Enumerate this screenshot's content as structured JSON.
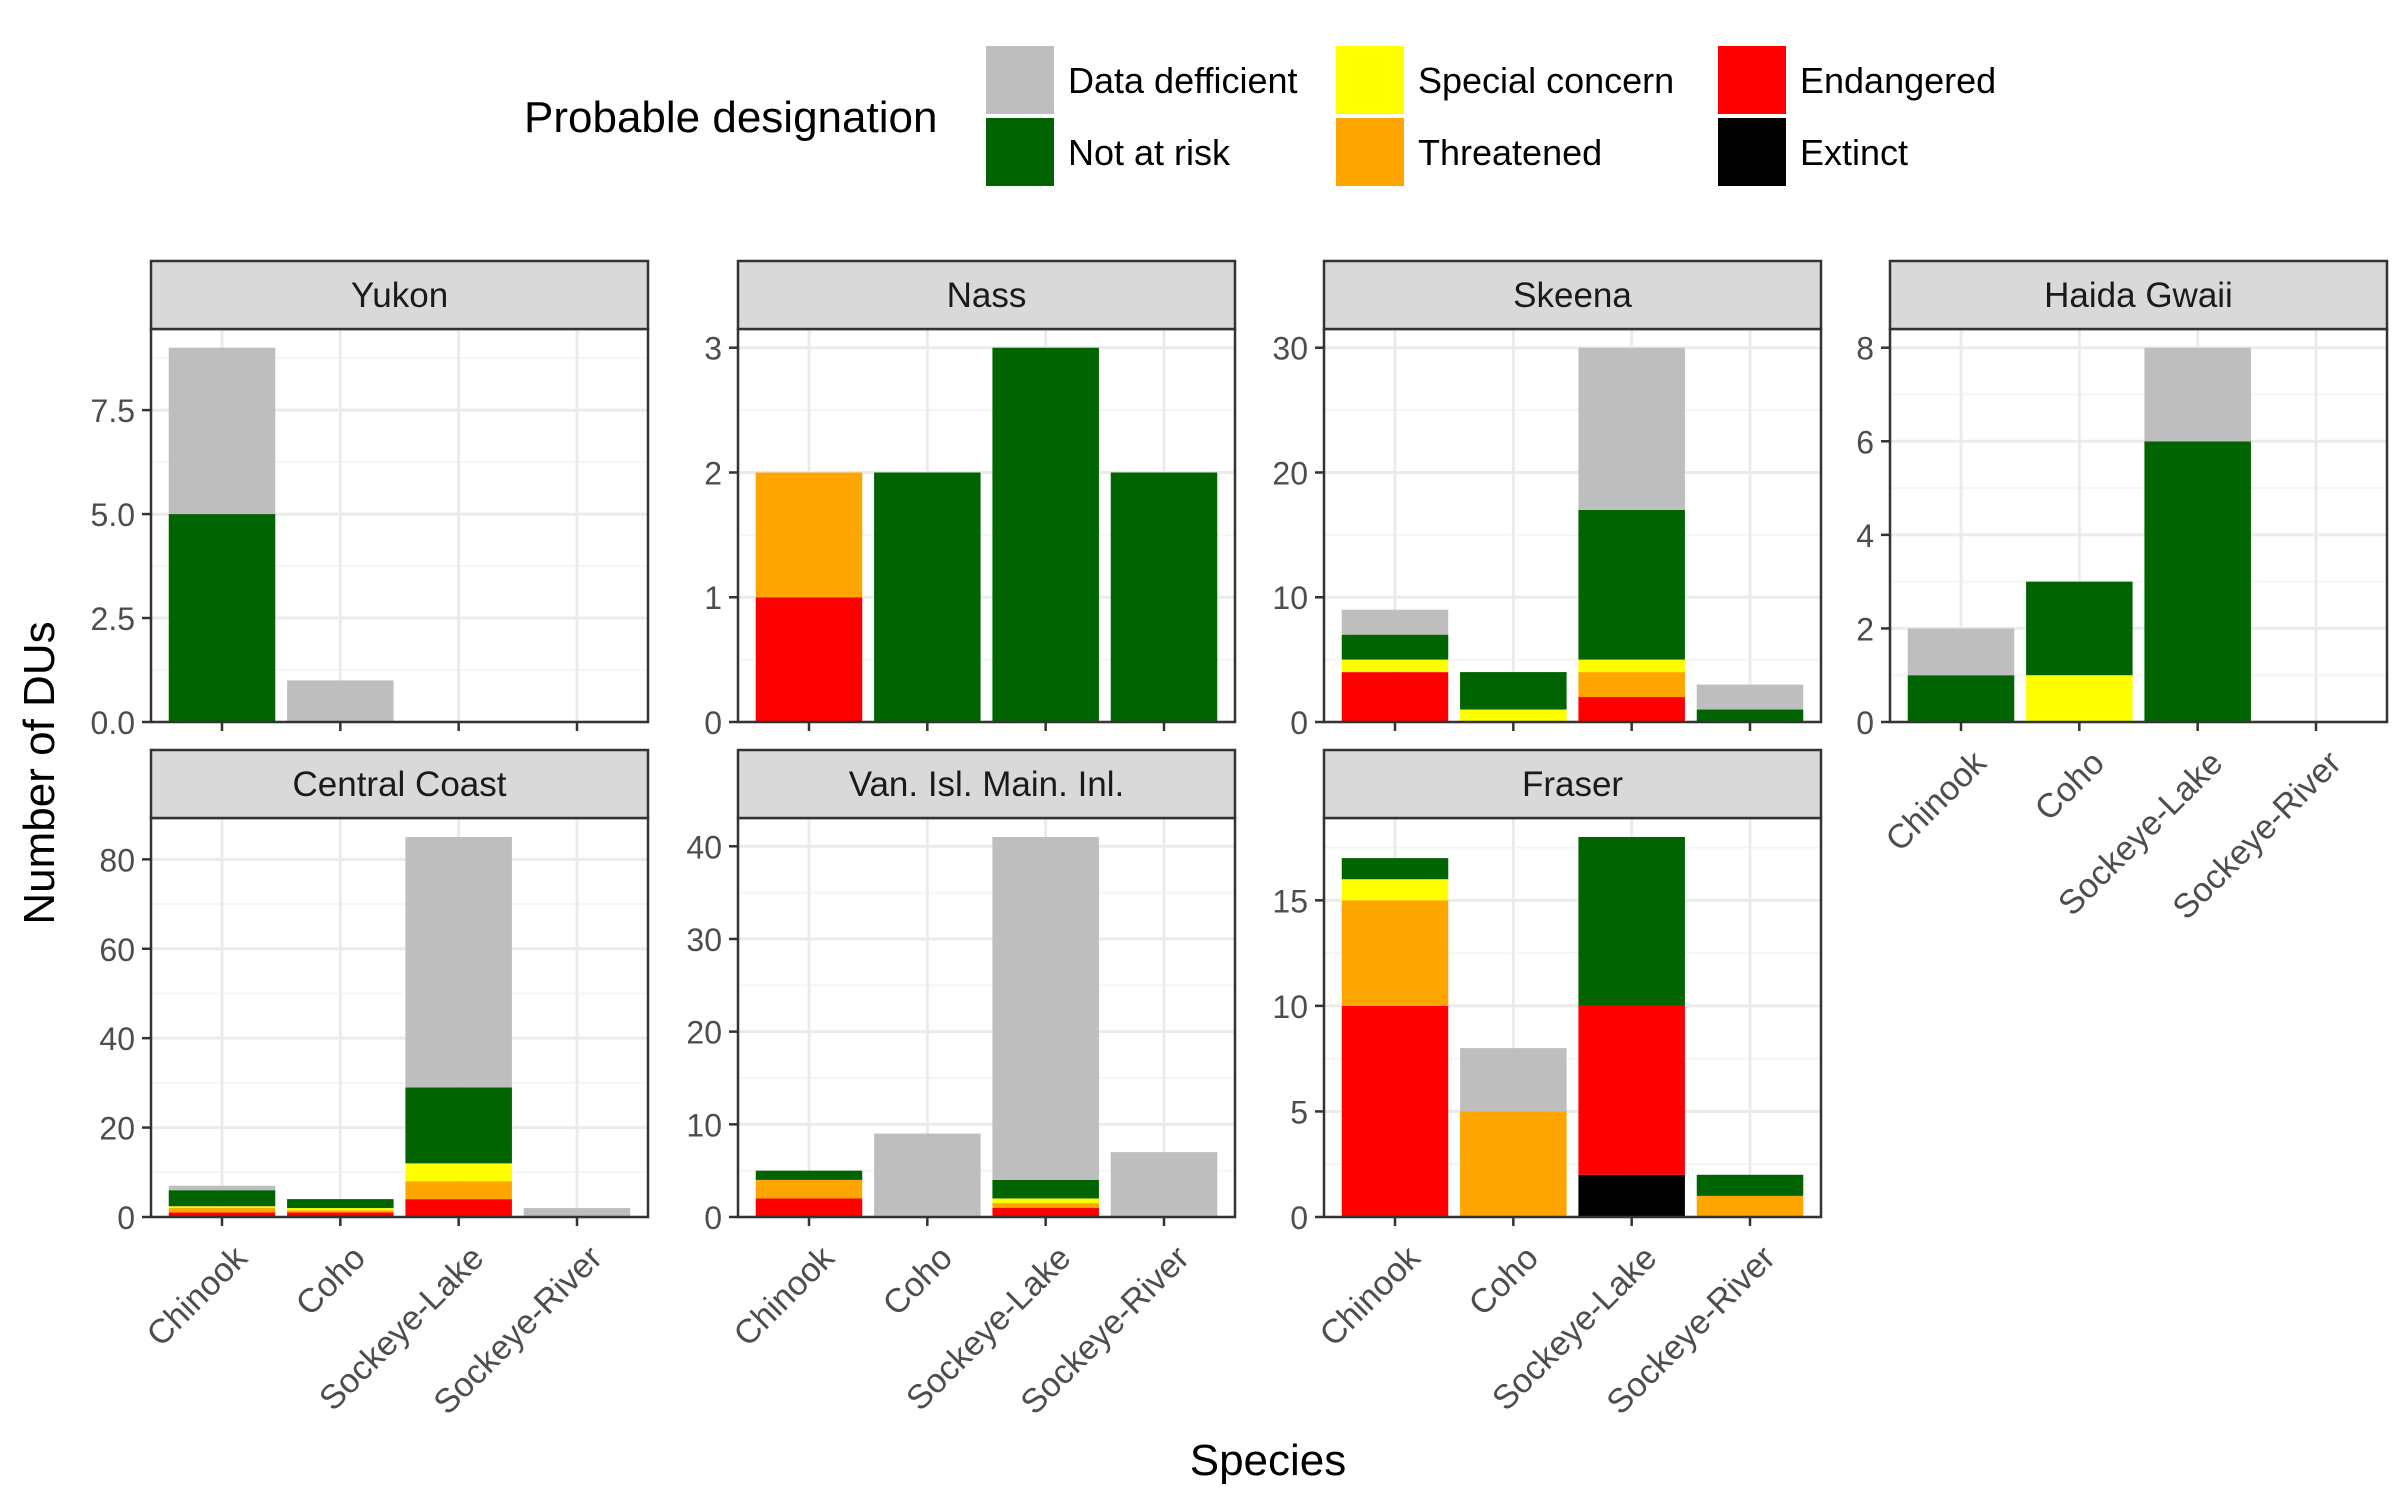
{
  "legend": {
    "title": "Probable designation",
    "items": [
      {
        "key": "dd",
        "label": "Data defficient",
        "color": "#BEBEBE"
      },
      {
        "key": "nar",
        "label": "Not at risk",
        "color": "#006400"
      },
      {
        "key": "sc",
        "label": "Special concern",
        "color": "#FFFF00"
      },
      {
        "key": "thr",
        "label": "Threatened",
        "color": "#FFA500"
      },
      {
        "key": "end",
        "label": "Endangered",
        "color": "#FF0000"
      },
      {
        "key": "ext",
        "label": "Extinct",
        "color": "#000000"
      }
    ]
  },
  "axes": {
    "xlabel": "Species",
    "ylabel": "Number of DUs"
  },
  "chart_data": {
    "type": "bar",
    "stacked": true,
    "grid": true,
    "legend_position": "top",
    "categories": [
      "Chinook",
      "Coho",
      "Sockeye-Lake",
      "Sockeye-River"
    ],
    "stack_order": [
      "ext",
      "end",
      "thr",
      "sc",
      "nar",
      "dd"
    ],
    "panels": [
      {
        "title": "Yukon",
        "ylim": [
          0,
          9.45
        ],
        "yticks": [
          0,
          2.5,
          5,
          7.5
        ],
        "ytick_labels": [
          "0.0",
          "2.5",
          "5.0",
          "7.5"
        ],
        "values": {
          "Chinook": {
            "nar": 5,
            "dd": 4
          },
          "Coho": {
            "dd": 1
          },
          "Sockeye-Lake": {},
          "Sockeye-River": {}
        }
      },
      {
        "title": "Nass",
        "ylim": [
          0,
          3.15
        ],
        "yticks": [
          0,
          1,
          2,
          3
        ],
        "ytick_labels": [
          "0",
          "1",
          "2",
          "3"
        ],
        "values": {
          "Chinook": {
            "end": 1,
            "thr": 1
          },
          "Coho": {
            "nar": 2
          },
          "Sockeye-Lake": {
            "nar": 3
          },
          "Sockeye-River": {
            "nar": 2
          }
        }
      },
      {
        "title": "Skeena",
        "ylim": [
          0,
          31.5
        ],
        "yticks": [
          0,
          10,
          20,
          30
        ],
        "ytick_labels": [
          "0",
          "10",
          "20",
          "30"
        ],
        "values": {
          "Chinook": {
            "end": 4,
            "sc": 1,
            "nar": 2,
            "dd": 2
          },
          "Coho": {
            "sc": 1,
            "nar": 3
          },
          "Sockeye-Lake": {
            "end": 2,
            "thr": 2,
            "sc": 1,
            "nar": 12,
            "dd": 13
          },
          "Sockeye-River": {
            "nar": 1,
            "dd": 2
          }
        }
      },
      {
        "title": "Haida Gwaii",
        "ylim": [
          0,
          8.4
        ],
        "yticks": [
          0,
          2,
          4,
          6,
          8
        ],
        "ytick_labels": [
          "0",
          "2",
          "4",
          "6",
          "8"
        ],
        "values": {
          "Chinook": {
            "nar": 1,
            "dd": 1
          },
          "Coho": {
            "sc": 1,
            "nar": 2
          },
          "Sockeye-Lake": {
            "nar": 6,
            "dd": 2
          },
          "Sockeye-River": {}
        }
      },
      {
        "title": "Central Coast",
        "ylim": [
          0,
          89.25
        ],
        "yticks": [
          0,
          20,
          40,
          60,
          80
        ],
        "ytick_labels": [
          "0",
          "20",
          "40",
          "60",
          "80"
        ],
        "values": {
          "Chinook": {
            "end": 1,
            "thr": 1,
            "sc": 0.4,
            "nar": 3.6,
            "dd": 1
          },
          "Coho": {
            "end": 1,
            "thr": 0.5,
            "sc": 0.5,
            "nar": 2
          },
          "Sockeye-Lake": {
            "end": 4,
            "thr": 4,
            "sc": 4,
            "nar": 17,
            "dd": 56
          },
          "Sockeye-River": {
            "dd": 2
          }
        }
      },
      {
        "title": "Van. Isl. Main. Inl.",
        "ylim": [
          0,
          43.05
        ],
        "yticks": [
          0,
          10,
          20,
          30,
          40
        ],
        "ytick_labels": [
          "0",
          "10",
          "20",
          "30",
          "40"
        ],
        "values": {
          "Chinook": {
            "end": 2,
            "thr": 2,
            "nar": 1
          },
          "Coho": {
            "dd": 9
          },
          "Sockeye-Lake": {
            "end": 1,
            "thr": 0.5,
            "sc": 0.5,
            "nar": 2,
            "dd": 37
          },
          "Sockeye-River": {
            "dd": 7
          }
        }
      },
      {
        "title": "Fraser",
        "ylim": [
          0,
          18.9
        ],
        "yticks": [
          0,
          5,
          10,
          15
        ],
        "ytick_labels": [
          "0",
          "5",
          "10",
          "15"
        ],
        "values": {
          "Chinook": {
            "end": 10,
            "thr": 5,
            "sc": 1,
            "nar": 1
          },
          "Coho": {
            "thr": 5,
            "dd": 3
          },
          "Sockeye-Lake": {
            "ext": 2,
            "end": 8,
            "nar": 8
          },
          "Sockeye-River": {
            "thr": 1,
            "nar": 1
          }
        }
      }
    ]
  }
}
